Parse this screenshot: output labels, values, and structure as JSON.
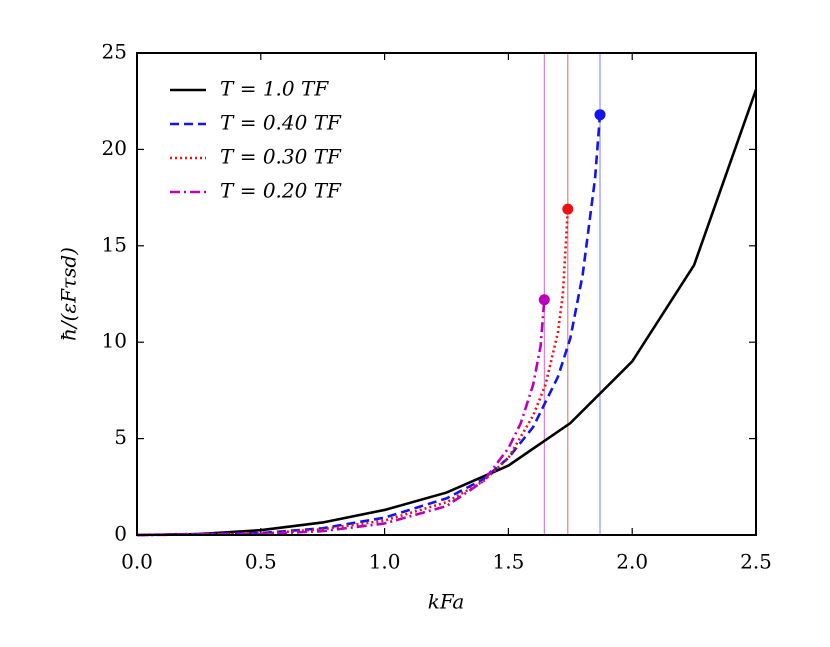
{
  "chart_data": {
    "type": "line",
    "x_label": "kFa",
    "y_label": "ħ/(εFτsd)",
    "xlim": [
      0,
      2.5
    ],
    "ylim": [
      0,
      25
    ],
    "xticks": [
      {
        "value": 0,
        "label": "0.0"
      },
      {
        "value": 0.5,
        "label": "0.5"
      },
      {
        "value": 1,
        "label": "1.0"
      },
      {
        "value": 1.5,
        "label": "1.5"
      },
      {
        "value": 2,
        "label": "2.0"
      },
      {
        "value": 2.5,
        "label": "2.5"
      }
    ],
    "yticks": [
      0,
      5,
      10,
      15,
      20,
      25
    ],
    "legend": "upper left",
    "series": [
      {
        "name": "T = 1.0 TF",
        "color": "#000000",
        "linestyle": "solid",
        "endpoint_marker": false,
        "x": [
          0,
          0.25,
          0.5,
          0.75,
          1.0,
          1.25,
          1.5,
          1.75,
          2.0,
          2.25,
          2.5
        ],
        "values": [
          0,
          0.05,
          0.25,
          0.65,
          1.3,
          2.2,
          3.6,
          5.8,
          9.0,
          14.0,
          23.1
        ]
      },
      {
        "name": "T = 0.40 TF",
        "color": "#1414ee",
        "linestyle": "dashed",
        "endpoint_marker": true,
        "x": [
          0,
          0.5,
          0.75,
          1.0,
          1.25,
          1.4,
          1.5,
          1.6,
          1.7,
          1.75,
          1.8,
          1.85,
          1.87
        ],
        "values": [
          0,
          0.1,
          0.35,
          0.9,
          1.9,
          2.9,
          4.0,
          5.6,
          8.2,
          10.2,
          13.5,
          18.5,
          21.8
        ]
      },
      {
        "name": "T = 0.30 TF",
        "color": "#ee1111",
        "linestyle": "dotted",
        "endpoint_marker": true,
        "x": [
          0,
          0.5,
          0.75,
          1.0,
          1.25,
          1.4,
          1.5,
          1.6,
          1.65,
          1.7,
          1.72,
          1.74
        ],
        "values": [
          0,
          0.07,
          0.3,
          0.75,
          1.7,
          2.8,
          4.0,
          6.2,
          7.8,
          10.5,
          12.5,
          16.9
        ]
      },
      {
        "name": "T = 0.20 TF",
        "color": "#bb00bb",
        "linestyle": "dashdot",
        "endpoint_marker": true,
        "x": [
          0,
          0.5,
          0.75,
          1.0,
          1.25,
          1.4,
          1.5,
          1.55,
          1.6,
          1.63,
          1.645
        ],
        "values": [
          0,
          0.05,
          0.2,
          0.6,
          1.5,
          2.8,
          4.5,
          5.8,
          7.8,
          9.8,
          12.2
        ]
      }
    ],
    "reference_lines": [
      {
        "x": 1.87,
        "color": "#7b7bff"
      },
      {
        "x": 1.74,
        "color": "#e06a6a"
      },
      {
        "x": 1.645,
        "color": "#d466d4"
      }
    ]
  }
}
